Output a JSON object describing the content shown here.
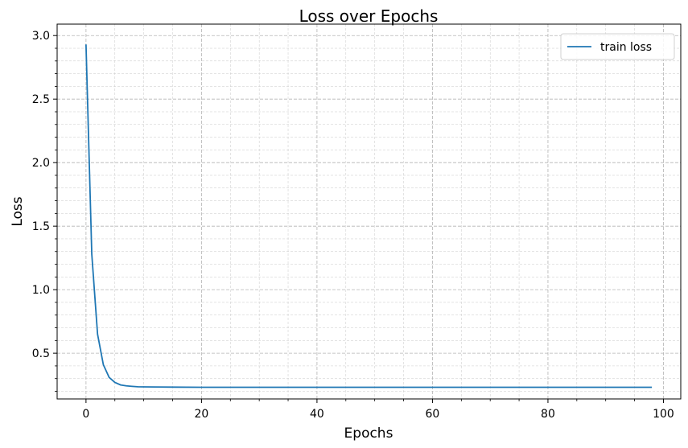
{
  "chart_data": {
    "type": "line",
    "title": "Loss over Epochs",
    "xlabel": "Epochs",
    "ylabel": "Loss",
    "xlim": [
      -5,
      103
    ],
    "ylim": [
      0.14,
      3.09
    ],
    "xticks": [
      0,
      20,
      40,
      60,
      80,
      100
    ],
    "yticks": [
      0.5,
      1.0,
      1.5,
      2.0,
      2.5,
      3.0
    ],
    "ytick_labels": [
      "0.5",
      "1.0",
      "1.5",
      "2.0",
      "2.5",
      "3.0"
    ],
    "grid": true,
    "minor_grid": true,
    "legend_position": "top-right",
    "series": [
      {
        "name": "train loss",
        "color": "#1f77b4",
        "x": [
          0,
          1,
          2,
          3,
          4,
          5,
          6,
          7,
          8,
          9,
          10,
          12,
          15,
          20,
          30,
          40,
          50,
          60,
          70,
          80,
          90,
          98
        ],
        "y": [
          2.93,
          1.28,
          0.65,
          0.41,
          0.31,
          0.27,
          0.25,
          0.243,
          0.239,
          0.236,
          0.235,
          0.234,
          0.233,
          0.232,
          0.232,
          0.232,
          0.232,
          0.232,
          0.232,
          0.232,
          0.232,
          0.232
        ]
      }
    ]
  }
}
